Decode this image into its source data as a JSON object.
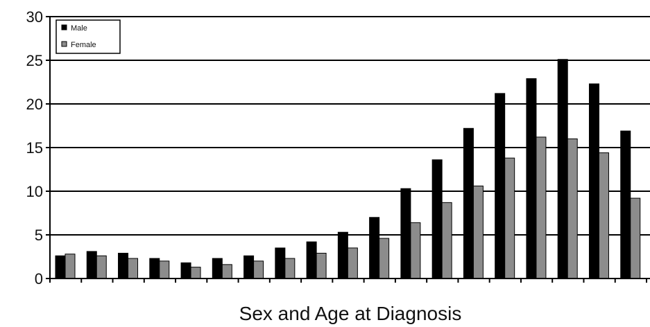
{
  "chart_data": {
    "type": "bar",
    "title": "",
    "xlabel": "Sex and Age at Diagnosis",
    "ylabel": "",
    "ylim": [
      0,
      30
    ],
    "yticks": [
      0,
      5,
      10,
      15,
      20,
      25,
      30
    ],
    "ytick_labels": [
      "0",
      "5",
      "10",
      "15",
      "20",
      "25",
      "30"
    ],
    "grid": "horizontal",
    "legend": "top-left",
    "categories": [
      "",
      "",
      "",
      "",
      "",
      "",
      "",
      "",
      "",
      "",
      "",
      "",
      "",
      "",
      "",
      "",
      "",
      "",
      ""
    ],
    "series": [
      {
        "name": "Male",
        "color": "#000000",
        "values": [
          2.6,
          3.1,
          2.9,
          2.3,
          1.8,
          2.3,
          2.6,
          3.5,
          4.2,
          5.3,
          7.0,
          10.3,
          13.6,
          17.2,
          21.2,
          22.9,
          25.1,
          22.3,
          16.9
        ]
      },
      {
        "name": "Female",
        "color": "#8c8c8c",
        "values": [
          2.8,
          2.6,
          2.3,
          2.0,
          1.3,
          1.6,
          2.0,
          2.3,
          2.9,
          3.5,
          4.6,
          6.4,
          8.7,
          10.6,
          13.8,
          16.2,
          16.0,
          14.4,
          9.2
        ]
      }
    ]
  }
}
